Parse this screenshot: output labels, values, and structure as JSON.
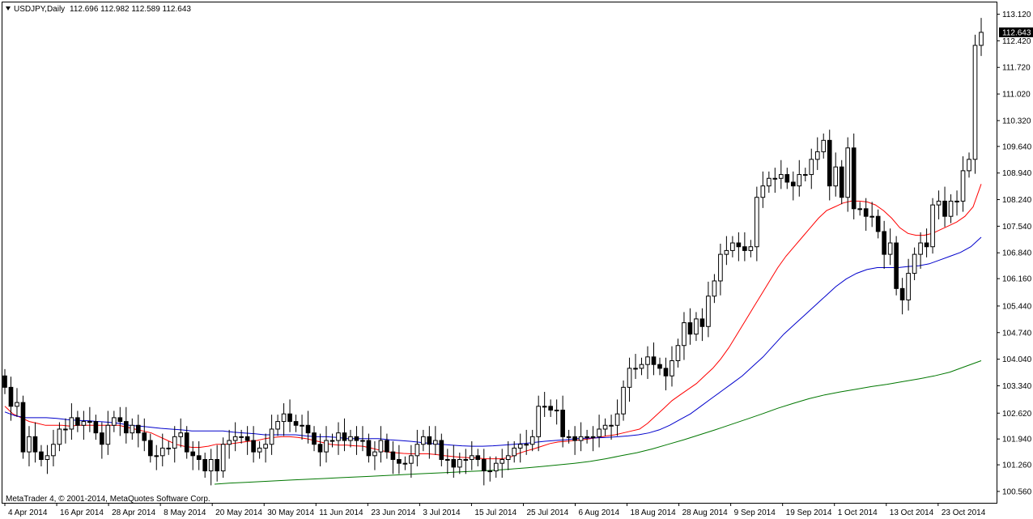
{
  "header": {
    "symbol_label": "USDJPY,Daily",
    "ohlc_label": "112.696 112.982 112.589 112.643",
    "dropdown_icon": "triangle-down-icon"
  },
  "footer": {
    "copyright": "MetaTrader 4, © 2001-2014, MetaQuotes Software Corp."
  },
  "colors": {
    "background": "#ffffff",
    "border": "#000000",
    "ma_fast": "#ff0000",
    "ma_mid": "#0000cc",
    "ma_slow": "#007700",
    "price_tag_bg": "#000000",
    "price_tag_text": "#ffffff"
  },
  "chart_data": {
    "type": "candlestick",
    "title": "USDJPY,Daily",
    "ylim": [
      100.26,
      113.43
    ],
    "y_ticks": [
      "113.120",
      "112.420",
      "111.720",
      "111.020",
      "110.320",
      "109.640",
      "108.940",
      "108.240",
      "107.540",
      "106.840",
      "106.160",
      "105.440",
      "104.740",
      "104.040",
      "103.340",
      "102.620",
      "101.940",
      "101.260",
      "100.560"
    ],
    "x_ticks": [
      "4 Apr 2014",
      "16 Apr 2014",
      "28 Apr 2014",
      "8 May 2014",
      "20 May 2014",
      "30 May 2014",
      "11 Jun 2014",
      "23 Jun 2014",
      "3 Jul 2014",
      "15 Jul 2014",
      "25 Jul 2014",
      "6 Aug 2014",
      "18 Aug 2014",
      "28 Aug 2014",
      "9 Sep 2014",
      "19 Sep 2014",
      "1 Oct 2014",
      "13 Oct 2014",
      "23 Oct 2014"
    ],
    "last_price": "112.643",
    "close": [
      103.3,
      102.8,
      102.9,
      101.6,
      102.0,
      101.6,
      101.4,
      101.5,
      101.8,
      102.2,
      102.2,
      102.5,
      102.3,
      102.4,
      102.4,
      102.1,
      101.8,
      102.3,
      102.5,
      102.4,
      102.1,
      102.3,
      102.1,
      101.9,
      101.5,
      101.5,
      101.7,
      101.7,
      102.0,
      102.1,
      101.6,
      101.5,
      101.4,
      101.1,
      101.4,
      101.1,
      101.8,
      101.9,
      102.0,
      102.0,
      101.9,
      101.6,
      101.7,
      101.8,
      102.2,
      102.4,
      102.6,
      102.4,
      102.3,
      102.3,
      102.1,
      101.8,
      101.6,
      101.9,
      101.9,
      102.1,
      101.9,
      102.0,
      101.9,
      101.9,
      101.5,
      101.6,
      101.9,
      101.6,
      101.4,
      101.3,
      101.3,
      101.5,
      101.8,
      102.0,
      101.8,
      101.9,
      101.4,
      101.4,
      101.2,
      101.4,
      101.4,
      101.5,
      101.4,
      101.1,
      101.1,
      101.3,
      101.4,
      101.5,
      101.7,
      101.8,
      101.8,
      102.0,
      102.8,
      102.8,
      102.7,
      102.7,
      102.0,
      102.0,
      101.9,
      102.0,
      102.0,
      102.0,
      102.2,
      102.3,
      102.3,
      102.6,
      103.3,
      103.8,
      103.8,
      103.9,
      104.1,
      103.9,
      103.8,
      103.6,
      104.0,
      104.4,
      105.0,
      104.7,
      105.1,
      104.9,
      105.7,
      106.1,
      106.8,
      106.9,
      107.1,
      107.0,
      106.9,
      107.0,
      108.3,
      108.6,
      108.8,
      108.8,
      108.9,
      108.7,
      108.6,
      108.9,
      108.9,
      109.3,
      109.5,
      109.8,
      108.6,
      109.1,
      108.3,
      109.6,
      108.0,
      108.0,
      107.8,
      107.8,
      107.4,
      106.8,
      107.1,
      105.9,
      105.6,
      106.3,
      106.8,
      107.1,
      107.0,
      108.1,
      108.2,
      107.8,
      108.2,
      108.2,
      109.0,
      109.3,
      112.3,
      112.643
    ],
    "series": [
      {
        "name": "",
        "color": "#ff0000",
        "values": [
          102.8,
          102.6,
          102.5,
          102.4,
          102.35,
          102.3,
          102.3,
          102.3,
          102.28,
          102.3,
          102.3,
          102.3,
          102.3,
          102.3,
          102.3,
          102.25,
          102.2,
          102.15,
          102.1,
          102.0,
          101.9,
          101.8,
          101.75,
          101.72,
          101.72,
          101.75,
          101.8,
          101.8,
          101.82,
          101.85,
          101.88,
          101.9,
          101.95,
          101.98,
          102.0,
          102.0,
          101.98,
          101.95,
          101.9,
          101.85,
          101.8,
          101.78,
          101.78,
          101.76,
          101.75,
          101.7,
          101.65,
          101.6,
          101.58,
          101.56,
          101.55,
          101.55,
          101.55,
          101.53,
          101.5,
          101.48,
          101.46,
          101.45,
          101.44,
          101.42,
          101.42,
          101.42,
          101.45,
          101.55,
          101.62,
          101.68,
          101.75,
          101.82,
          101.86,
          101.88,
          101.9,
          101.92,
          101.95,
          101.98,
          102.02,
          102.05,
          102.1,
          102.15,
          102.2,
          102.35,
          102.55,
          102.75,
          102.95,
          103.1,
          103.25,
          103.4,
          103.6,
          103.8,
          104.05,
          104.35,
          104.7,
          105.05,
          105.4,
          105.75,
          106.1,
          106.45,
          106.75,
          107.0,
          107.25,
          107.5,
          107.75,
          107.95,
          108.05,
          108.15,
          108.2,
          108.2,
          108.18,
          108.1,
          107.95,
          107.75,
          107.5,
          107.35,
          107.3,
          107.3,
          107.35,
          107.45,
          107.55,
          107.65,
          107.8,
          108.05,
          108.65
        ]
      },
      {
        "name": "",
        "color": "#0000cc",
        "values": [
          102.65,
          102.55,
          102.5,
          102.5,
          102.5,
          102.48,
          102.45,
          102.43,
          102.42,
          102.4,
          102.38,
          102.35,
          102.3,
          102.28,
          102.25,
          102.22,
          102.2,
          102.18,
          102.15,
          102.15,
          102.15,
          102.15,
          102.12,
          102.1,
          102.08,
          102.05,
          102.05,
          102.05,
          102.05,
          102.02,
          102.0,
          102.0,
          101.98,
          101.95,
          101.95,
          101.95,
          101.95,
          101.92,
          101.9,
          101.88,
          101.85,
          101.82,
          101.8,
          101.78,
          101.76,
          101.75,
          101.75,
          101.76,
          101.78,
          101.8,
          101.82,
          101.85,
          101.88,
          101.9,
          101.92,
          101.95,
          101.96,
          101.97,
          101.98,
          102.0,
          102.02,
          102.05,
          102.1,
          102.18,
          102.3,
          102.45,
          102.6,
          102.8,
          103.0,
          103.2,
          103.4,
          103.6,
          103.85,
          104.1,
          104.4,
          104.7,
          104.95,
          105.2,
          105.45,
          105.7,
          105.95,
          106.15,
          106.3,
          106.4,
          106.45,
          106.45,
          106.45,
          106.48,
          106.5,
          106.55,
          106.65,
          106.75,
          106.85,
          107.0,
          107.25
        ]
      },
      {
        "name": "",
        "color": "#007700",
        "values": [
          100.75,
          100.78,
          100.8,
          100.82,
          100.84,
          100.86,
          100.88,
          100.9,
          100.92,
          100.94,
          100.96,
          100.98,
          101.0,
          101.02,
          101.04,
          101.06,
          101.08,
          101.1,
          101.12,
          101.15,
          101.18,
          101.22,
          101.26,
          101.3,
          101.35,
          101.42,
          101.5,
          101.58,
          101.68,
          101.8,
          101.92,
          102.05,
          102.18,
          102.32,
          102.46,
          102.6,
          102.75,
          102.88,
          103.0,
          103.1,
          103.18,
          103.25,
          103.32,
          103.38,
          103.45,
          103.52,
          103.6,
          103.7,
          103.85,
          104.0
        ]
      }
    ]
  }
}
